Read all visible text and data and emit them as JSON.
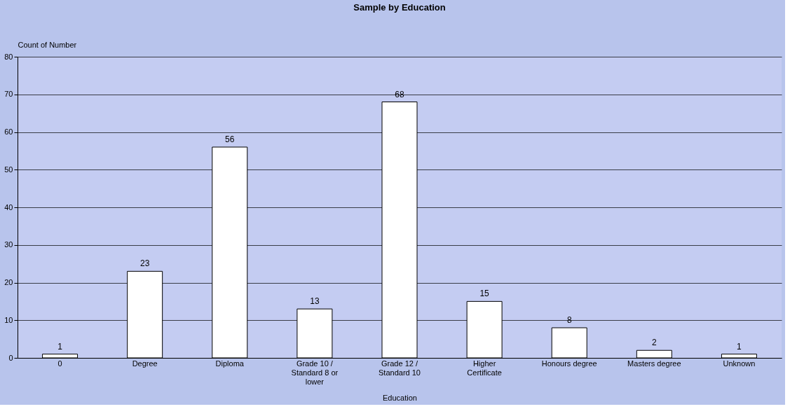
{
  "chart_data": {
    "type": "bar",
    "title": "Sample by Education",
    "xlabel": "Education",
    "ylabel": "Count of Number",
    "categories": [
      "0",
      "Degree",
      "Diploma",
      "Grade 10 / Standard 8 or lower",
      "Grade 12 / Standard 10",
      "Higher Certificate",
      "Honours degree",
      "Masters degree",
      "Unknown"
    ],
    "values": [
      1,
      23,
      56,
      13,
      68,
      15,
      8,
      2,
      1
    ],
    "color": "#ffffff",
    "ylim": [
      0,
      80
    ],
    "yticks": [
      0,
      10,
      20,
      30,
      40,
      50,
      60,
      70,
      80
    ],
    "grid": "y",
    "data_labels": true
  }
}
